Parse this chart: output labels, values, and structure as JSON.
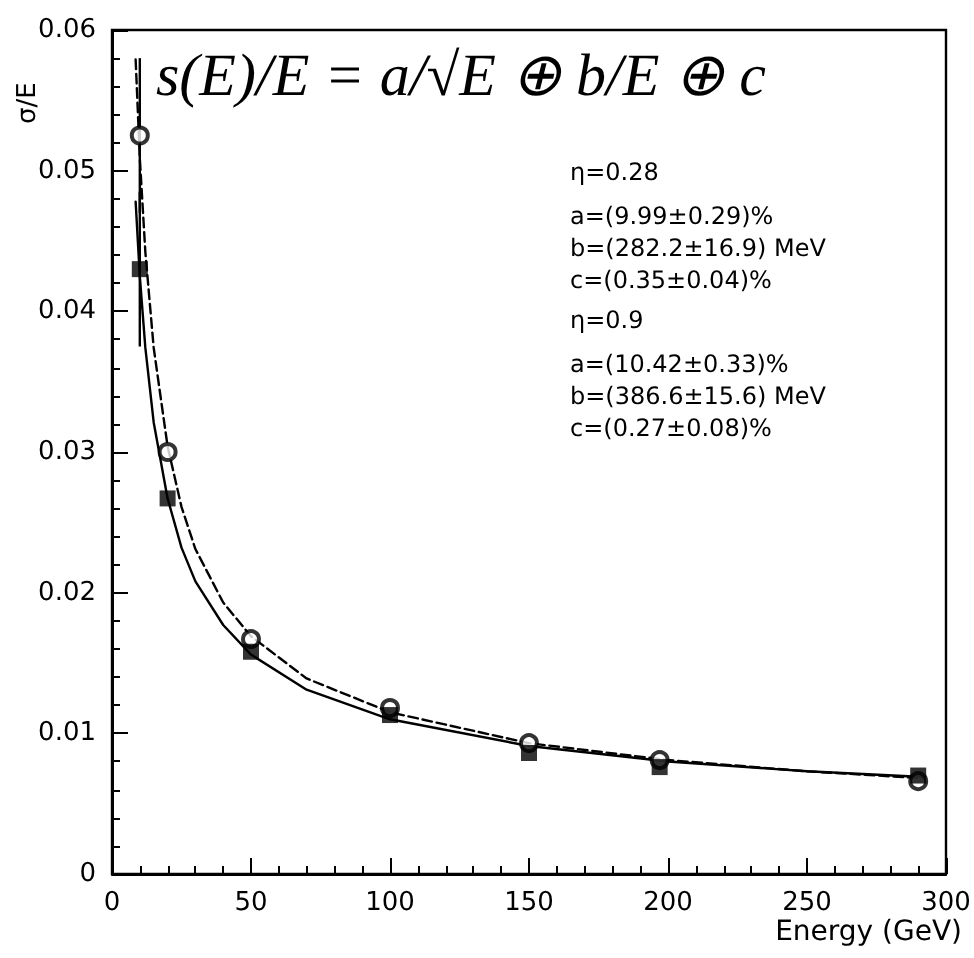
{
  "chart_data": {
    "type": "scatter",
    "title": "s(E)/E = a/√E ⊕ b/E ⊕ c",
    "xlabel": "Energy (GeV)",
    "ylabel": "σ/E",
    "annotations": [
      "η=0.28",
      "a=(9.99±0.29)%",
      "b=(282.2±16.9) MeV",
      "c=(0.35±0.04)%",
      "η=0.9",
      "a=(10.42±0.33)%",
      "b=(386.6±15.6) MeV",
      "c=(0.27±0.08)%"
    ],
    "x": [
      10,
      20,
      50,
      100,
      150,
      197,
      290
    ],
    "series": [
      {
        "color": "#000000",
        "marker": "circle",
        "values": [
          0.0525,
          0.03,
          0.0167,
          0.0118,
          0.0093,
          0.0081,
          0.0066
        ],
        "errors": [
          0.0055,
          null,
          null,
          null,
          null,
          null,
          null
        ]
      },
      {
        "color": "#000000",
        "marker": "square",
        "values": [
          0.043,
          0.0267,
          0.0158,
          0.0113,
          0.0086,
          0.0076,
          0.007
        ],
        "errors": [
          0.0055,
          null,
          null,
          null,
          null,
          null,
          null
        ]
      },
      {
        "type": "line",
        "color": "#000000",
        "line_style": "dashed",
        "x": [
          8.5,
          10,
          12,
          15,
          20,
          25,
          30,
          40,
          50,
          70,
          100,
          150,
          200,
          250,
          292
        ],
        "values": [
          0.0579,
          0.0509,
          0.0442,
          0.0374,
          0.0304,
          0.0261,
          0.0231,
          0.0193,
          0.0169,
          0.0139,
          0.0115,
          0.0093,
          0.0081,
          0.0073,
          0.0068
        ]
      },
      {
        "type": "line",
        "color": "#000000",
        "line_style": "solid",
        "x": [
          8.5,
          10,
          12,
          15,
          20,
          25,
          30,
          40,
          50,
          70,
          100,
          150,
          200,
          250,
          292
        ],
        "values": [
          0.0478,
          0.0425,
          0.0374,
          0.0321,
          0.0267,
          0.0232,
          0.0208,
          0.0177,
          0.0156,
          0.0131,
          0.011,
          0.0091,
          0.008,
          0.0073,
          0.0069
        ]
      }
    ],
    "xlim": [
      0,
      300
    ],
    "xticks": [
      0,
      50,
      100,
      150,
      200,
      250,
      300
    ],
    "ylim": [
      0,
      0.06
    ],
    "yticks": [
      0,
      0.01,
      0.02,
      0.03,
      0.04,
      0.05,
      0.06
    ],
    "grid": false
  }
}
